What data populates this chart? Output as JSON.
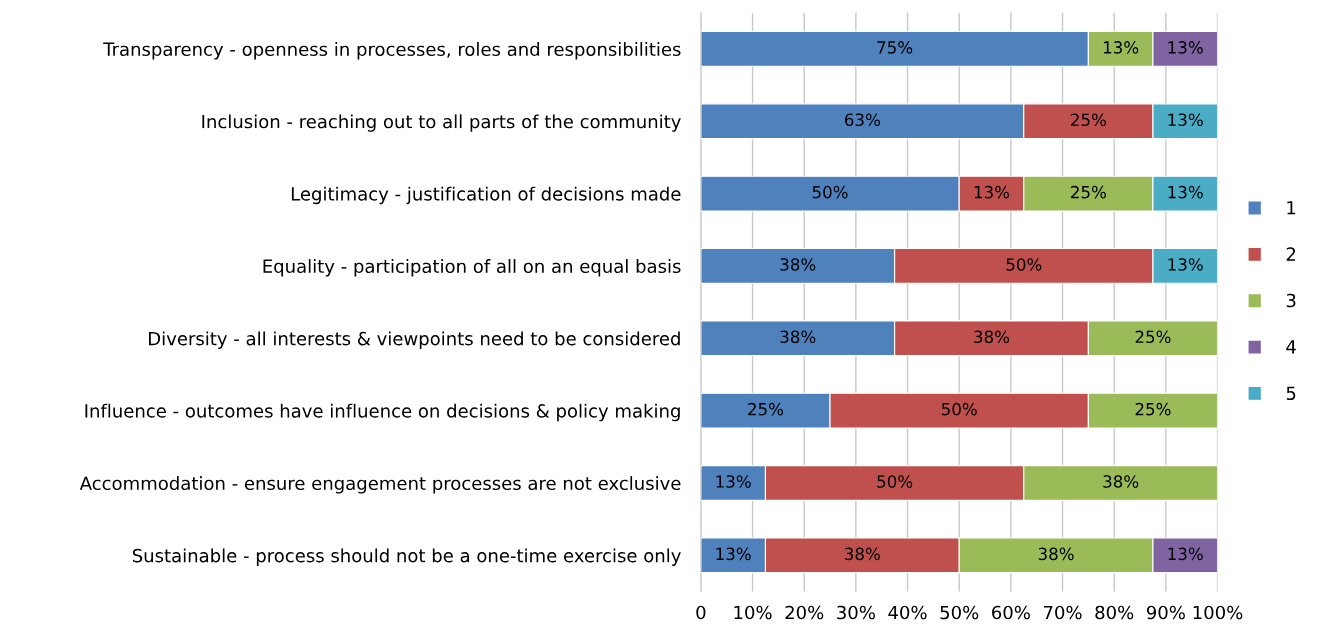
{
  "chart_data": {
    "type": "bar",
    "orientation": "horizontal",
    "stacked": true,
    "categories": [
      "Transparency - openness in processes, roles and responsibilities",
      "Inclusion - reaching out to all parts of the community",
      "Legitimacy - justification of decisions made",
      "Equality - participation of all on an equal basis",
      "Diversity - all interests & viewpoints need to be considered",
      "Influence - outcomes have influence on decisions & policy making",
      "Accommodation - ensure engagement processes are not exclusive",
      "Sustainable - process should not be a one-time exercise only"
    ],
    "series": [
      {
        "name": "1",
        "color": "#4f81bd",
        "values": [
          75,
          62.5,
          50,
          37.5,
          37.5,
          25,
          12.5,
          12.5
        ],
        "value_labels": [
          "75%",
          "63%",
          "50%",
          "38%",
          "38%",
          "25%",
          "13%",
          "13%"
        ]
      },
      {
        "name": "2",
        "color": "#c0504d",
        "values": [
          null,
          25,
          12.5,
          50,
          37.5,
          50,
          50,
          37.5
        ],
        "value_labels": [
          null,
          "25%",
          "13%",
          "50%",
          "38%",
          "50%",
          "50%",
          "38%"
        ]
      },
      {
        "name": "3",
        "color": "#9bbb59",
        "values": [
          12.5,
          null,
          25,
          null,
          25,
          25,
          37.5,
          37.5
        ],
        "value_labels": [
          "13%",
          null,
          "25%",
          null,
          "25%",
          "25%",
          "38%",
          "38%"
        ]
      },
      {
        "name": "4",
        "color": "#8064a2",
        "values": [
          12.5,
          null,
          null,
          null,
          null,
          null,
          null,
          12.5
        ],
        "value_labels": [
          "13%",
          null,
          null,
          null,
          null,
          null,
          null,
          "13%"
        ]
      },
      {
        "name": "5",
        "color": "#4bacc6",
        "values": [
          null,
          12.5,
          12.5,
          12.5,
          null,
          null,
          null,
          null
        ],
        "value_labels": [
          null,
          "13%",
          "13%",
          "13%",
          null,
          null,
          null,
          null
        ]
      }
    ],
    "xlim": [
      0,
      100
    ],
    "xticks": [
      0,
      {
        "value": 10,
        "label": "10%"
      },
      {
        "value": 20,
        "label": "20%"
      },
      {
        "value": 30,
        "label": "30%"
      },
      {
        "value": 40,
        "label": "40%"
      },
      {
        "value": 50,
        "label": "50%"
      },
      {
        "value": 60,
        "label": "60%"
      },
      {
        "value": 70,
        "label": "70%"
      },
      {
        "value": 80,
        "label": "80%"
      },
      {
        "value": 90,
        "label": "90%"
      },
      {
        "value": 100,
        "label": "100%"
      }
    ],
    "grid": "x",
    "legend": "right"
  }
}
